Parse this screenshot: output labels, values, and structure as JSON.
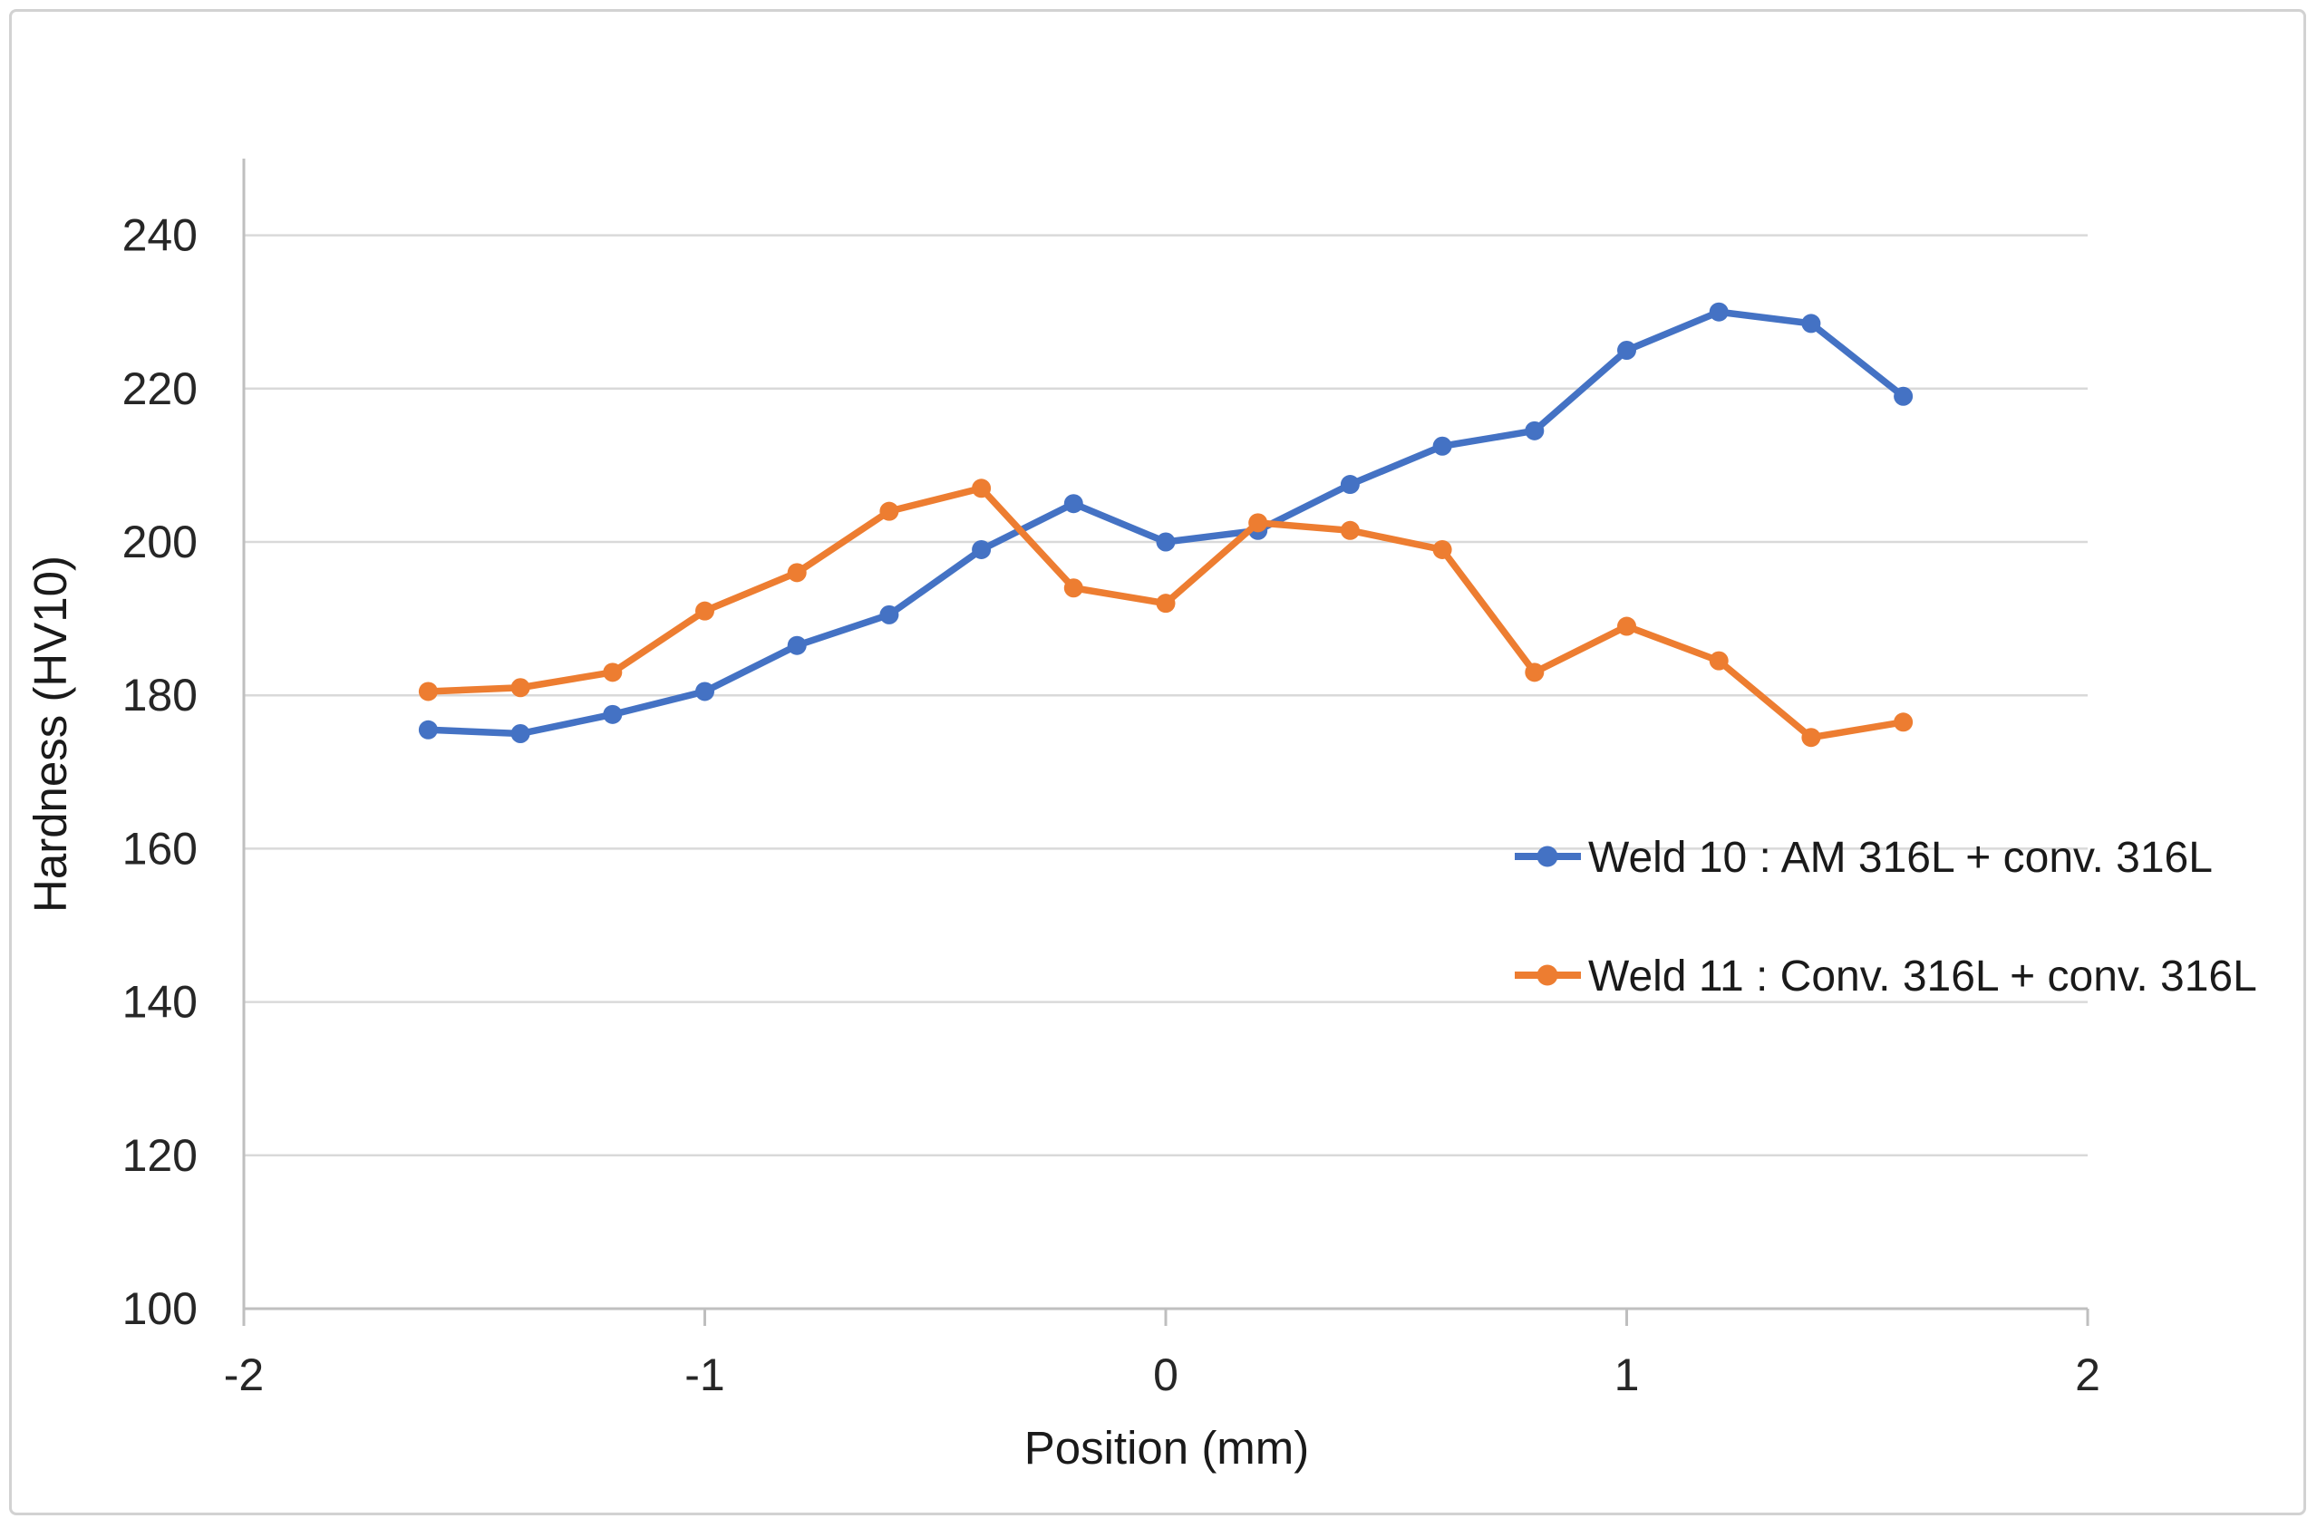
{
  "chart_data": {
    "type": "line",
    "title": "",
    "xlabel": "Position (mm)",
    "ylabel": "Hardness (HV10)",
    "xlim": [
      -2,
      2
    ],
    "ylim": [
      100,
      250
    ],
    "x_ticks": [
      "-2",
      "-1",
      "0",
      "1",
      "2"
    ],
    "x_tick_values": [
      -2,
      -1,
      0,
      1,
      2
    ],
    "y_ticks": [
      "100",
      "120",
      "140",
      "160",
      "180",
      "200",
      "220",
      "240"
    ],
    "y_tick_values": [
      100,
      120,
      140,
      160,
      180,
      200,
      220,
      240
    ],
    "grid": "horizontal",
    "legend_position": "inside-right",
    "x": [
      -1.6,
      -1.4,
      -1.2,
      -1.0,
      -0.8,
      -0.6,
      -0.4,
      -0.2,
      0,
      0.2,
      0.4,
      0.6,
      0.8,
      1.0,
      1.2,
      1.4,
      1.6
    ],
    "series": [
      {
        "name": "Weld 10 : AM 316L + conv. 316L",
        "color": "#4472C4",
        "values": [
          175.5,
          175,
          177.5,
          180.5,
          186.5,
          190.5,
          199,
          205,
          200,
          201.5,
          207.5,
          212.5,
          214.5,
          225,
          230,
          228.5,
          219
        ]
      },
      {
        "name": "Weld 11 : Conv. 316L + conv. 316L",
        "color": "#ED7D31",
        "values": [
          180.5,
          181,
          183,
          191,
          196,
          204,
          207,
          194,
          192,
          202.5,
          201.5,
          199,
          183,
          189,
          184.5,
          174.5,
          176.5
        ]
      }
    ]
  }
}
